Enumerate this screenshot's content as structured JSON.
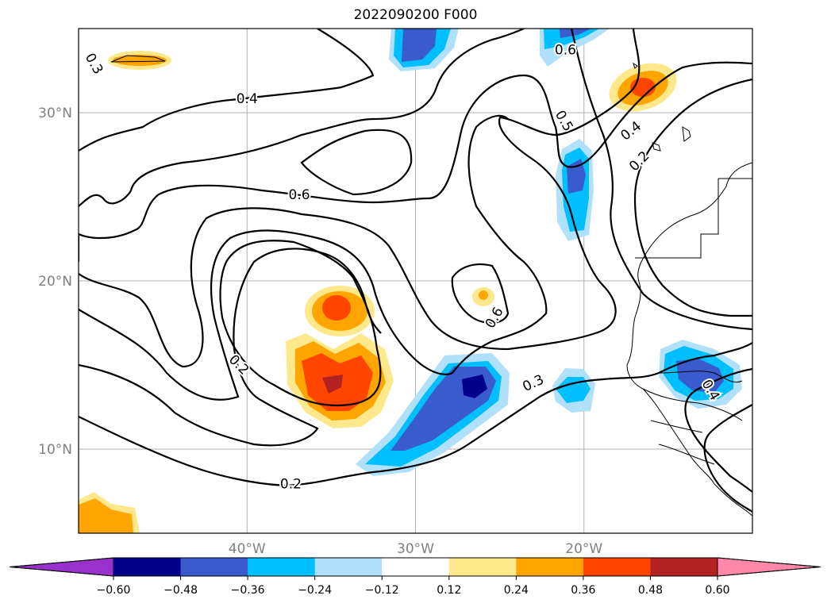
{
  "title": "2022090200 F000",
  "map": {
    "lon_range": [
      -50,
      -10
    ],
    "lat_range": [
      5,
      35
    ],
    "lat_ticks": [
      {
        "value": 10,
        "label": "10°N"
      },
      {
        "value": 20,
        "label": "20°N"
      },
      {
        "value": 30,
        "label": "30°N"
      }
    ],
    "lon_ticks": [
      {
        "value": -40,
        "label": "40°W"
      },
      {
        "value": -30,
        "label": "30°W"
      },
      {
        "value": -20,
        "label": "20°W"
      }
    ],
    "gridlines": true
  },
  "contour_labels": [
    {
      "text": "0.3",
      "lon": -49.1,
      "lat": 32.9,
      "rot": 60
    },
    {
      "text": "0.4",
      "lon": -40.0,
      "lat": 30.8,
      "rot": 0
    },
    {
      "text": "0.6",
      "lon": -36.9,
      "lat": 25.1,
      "rot": 0
    },
    {
      "text": "0.6",
      "lon": -21.1,
      "lat": 33.7,
      "rot": 0
    },
    {
      "text": "0.5",
      "lon": -21.2,
      "lat": 29.5,
      "rot": 60
    },
    {
      "text": "0.4",
      "lon": -17.2,
      "lat": 28.9,
      "rot": -38
    },
    {
      "text": "0.2",
      "lon": -16.7,
      "lat": 27.1,
      "rot": -45
    },
    {
      "text": "0.6",
      "lon": -25.3,
      "lat": 17.8,
      "rot": -60
    },
    {
      "text": "0.2",
      "lon": -40.5,
      "lat": 15.0,
      "rot": 45
    },
    {
      "text": "0.3",
      "lon": -23.0,
      "lat": 13.9,
      "rot": -25
    },
    {
      "text": "0.2",
      "lon": -37.4,
      "lat": 7.9,
      "rot": 0
    },
    {
      "text": "0.4",
      "lon": -12.5,
      "lat": 13.5,
      "rot": 60
    }
  ],
  "colorbar": {
    "ticks": [
      "−0.60",
      "−0.48",
      "−0.36",
      "−0.24",
      "−0.12",
      "0.12",
      "0.24",
      "0.36",
      "0.48",
      "0.60"
    ],
    "colors": [
      "#9932CC",
      "#00008B",
      "#3A5BCD",
      "#00BFFF",
      "#B0E0FA",
      "#FFFFFF",
      "#FDE98C",
      "#FFA500",
      "#FF4500",
      "#B22222",
      "#FF88AA"
    ]
  },
  "colors": {
    "contour": "#000000",
    "coast": "#000000",
    "grid": "#b0b0b0",
    "tick_text": "#808080"
  }
}
